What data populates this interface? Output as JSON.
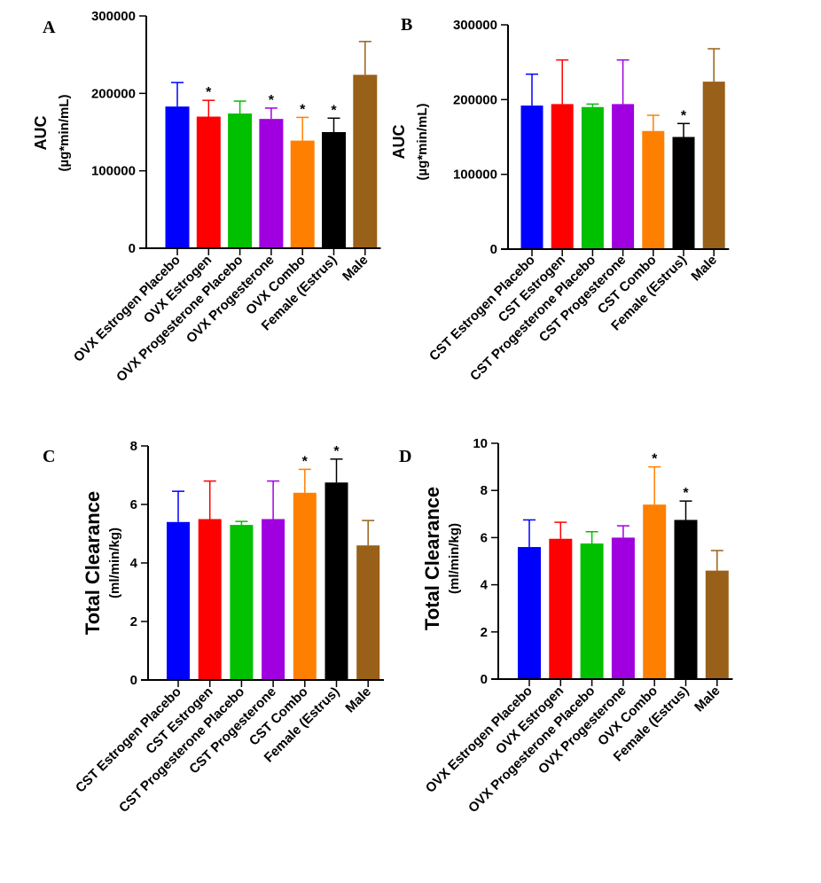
{
  "chart_data": [
    {
      "panel": "A",
      "type": "bar",
      "ylabel": "AUC",
      "ylabel_unit": "(µg*min/mL)",
      "ylim": [
        0,
        300000
      ],
      "yticks": [
        "0",
        "100000",
        "200000",
        "300000"
      ],
      "categories": [
        "OVX Estrogen Placebo",
        "OVX Estrogen",
        "OVX Progesterone Placebo",
        "OVX Progesterone",
        "OVX Combo",
        "Female (Estrus)",
        "Male"
      ],
      "values": [
        183000,
        170000,
        174000,
        167000,
        139000,
        150000,
        224000
      ],
      "errors": [
        31000,
        21000,
        16000,
        14000,
        30000,
        18000,
        43000
      ],
      "significance": [
        "",
        "*",
        "",
        "*",
        "*",
        "*",
        ""
      ],
      "colors": [
        "#0000ff",
        "#ff0000",
        "#00c000",
        "#a000e0",
        "#ff8000",
        "#000000",
        "#996019"
      ]
    },
    {
      "panel": "B",
      "type": "bar",
      "ylabel": "AUC",
      "ylabel_unit": "(µg*min/mL)",
      "ylim": [
        0,
        300000
      ],
      "yticks": [
        "0",
        "100000",
        "200000",
        "300000"
      ],
      "categories": [
        "CST Estrogen Placebo",
        "CST Estrogen",
        "CST Progesterone Placebo",
        "CST Progesterone",
        "CST Combo",
        "Female (Estrus)",
        "Male"
      ],
      "values": [
        192000,
        194000,
        190000,
        194000,
        158000,
        150000,
        224000
      ],
      "errors": [
        42000,
        59000,
        4000,
        59000,
        21000,
        18000,
        44000
      ],
      "significance": [
        "",
        "",
        "",
        "",
        "",
        "*",
        ""
      ],
      "colors": [
        "#0000ff",
        "#ff0000",
        "#00c000",
        "#a000e0",
        "#ff8000",
        "#000000",
        "#996019"
      ]
    },
    {
      "panel": "C",
      "type": "bar",
      "ylabel": "Total Clearance",
      "ylabel_unit": "(ml/min/kg)",
      "ylim": [
        0,
        8
      ],
      "yticks": [
        "0",
        "2",
        "4",
        "6",
        "8"
      ],
      "categories": [
        "CST Estrogen Placebo",
        "CST Estrogen",
        "CST Progesterone Placebo",
        "CST Progesterone",
        "CST Combo",
        "Female (Estrus)",
        "Male"
      ],
      "values": [
        5.4,
        5.5,
        5.3,
        5.5,
        6.4,
        6.75,
        4.6
      ],
      "errors": [
        1.05,
        1.3,
        0.12,
        1.3,
        0.8,
        0.8,
        0.85
      ],
      "significance": [
        "",
        "",
        "",
        "",
        "*",
        "*",
        ""
      ],
      "colors": [
        "#0000ff",
        "#ff0000",
        "#00c000",
        "#a000e0",
        "#ff8000",
        "#000000",
        "#996019"
      ]
    },
    {
      "panel": "D",
      "type": "bar",
      "ylabel": "Total Clearance",
      "ylabel_unit": "(ml/min/kg)",
      "ylim": [
        0,
        10
      ],
      "yticks": [
        "0",
        "2",
        "4",
        "6",
        "8",
        "10"
      ],
      "categories": [
        "OVX Estrogen Placebo",
        "OVX Estrogen",
        "OVX Progesterone Placebo",
        "OVX Progesterone",
        "OVX Combo",
        "Female (Estrus)",
        "Male"
      ],
      "values": [
        5.6,
        5.95,
        5.75,
        6.0,
        7.4,
        6.75,
        4.6
      ],
      "errors": [
        1.15,
        0.7,
        0.5,
        0.5,
        1.6,
        0.8,
        0.85
      ],
      "significance": [
        "",
        "",
        "",
        "",
        "*",
        "*",
        ""
      ],
      "colors": [
        "#0000ff",
        "#ff0000",
        "#00c000",
        "#a000e0",
        "#ff8000",
        "#000000",
        "#996019"
      ]
    }
  ]
}
